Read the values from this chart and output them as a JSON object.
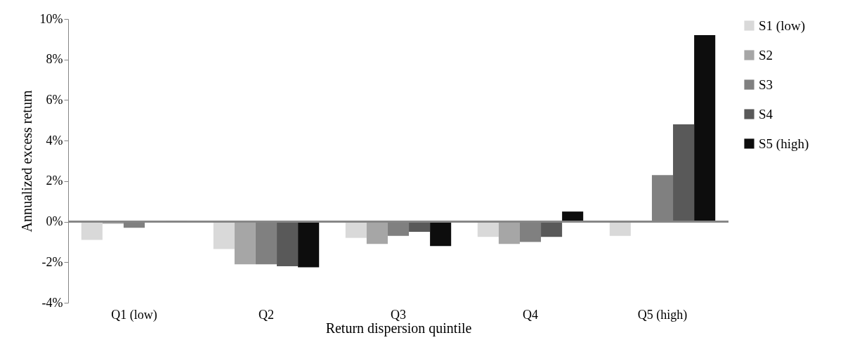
{
  "chart_data": {
    "type": "bar",
    "xlabel": "Return dispersion quintile",
    "ylabel": "Annualized excess return",
    "categories": [
      "Q1 (low)",
      "Q2",
      "Q3",
      "Q4",
      "Q5 (high)"
    ],
    "series": [
      {
        "name": "S1 (low)",
        "color": "#d9d9d9",
        "values": [
          -0.9,
          -1.35,
          -0.8,
          -0.75,
          -0.7
        ]
      },
      {
        "name": "S2",
        "color": "#a6a6a6",
        "values": [
          -0.1,
          -2.1,
          -1.1,
          -1.1,
          -0.05
        ]
      },
      {
        "name": "S3",
        "color": "#808080",
        "values": [
          -0.3,
          -2.1,
          -0.7,
          -1.0,
          2.3
        ]
      },
      {
        "name": "S4",
        "color": "#595959",
        "values": [
          0,
          -2.2,
          -0.5,
          -0.75,
          4.8
        ]
      },
      {
        "name": "S5 (high)",
        "color": "#0d0d0d",
        "values": [
          0.05,
          -2.25,
          -1.2,
          0.5,
          9.2
        ]
      }
    ],
    "ylim": [
      -4,
      10
    ],
    "yticks": [
      {
        "value": -4,
        "label": "-4%"
      },
      {
        "value": -2,
        "label": "-2%"
      },
      {
        "value": 0,
        "label": "0%"
      },
      {
        "value": 2,
        "label": "2%"
      },
      {
        "value": 4,
        "label": "4%"
      },
      {
        "value": 6,
        "label": "6%"
      },
      {
        "value": 8,
        "label": "8%"
      },
      {
        "value": 10,
        "label": "10%"
      }
    ],
    "legend": "right"
  }
}
